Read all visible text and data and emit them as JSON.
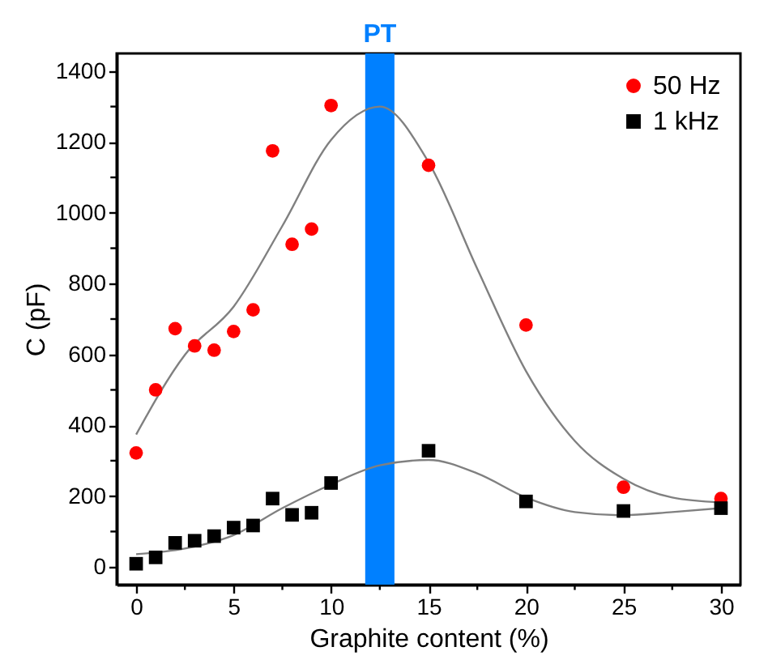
{
  "chart_data": {
    "type": "scatter",
    "xlabel": "Graphite content (%)",
    "ylabel": "C (pF)",
    "x": [
      0,
      1,
      2,
      3,
      4,
      5,
      6,
      7,
      8,
      9,
      10,
      15,
      20,
      25,
      30
    ],
    "series": [
      {
        "name": "50 Hz",
        "color": "#ff0000",
        "marker": "circle",
        "values": [
          322,
          500,
          673,
          624,
          612,
          665,
          726,
          1175,
          911,
          954,
          1303,
          1134,
          683,
          225,
          193
        ]
      },
      {
        "name": "1 kHz",
        "color": "#000000",
        "marker": "square",
        "values": [
          9,
          27,
          68,
          74,
          87,
          111,
          117,
          193,
          147,
          153,
          237,
          328,
          185,
          158,
          166
        ]
      },
      {
        "type": "line",
        "color": "#808080",
        "x": [
          0,
          2.5,
          5,
          7.5,
          10,
          12.5,
          15,
          17.5,
          20,
          22.5,
          25,
          27.5,
          30
        ],
        "values": [
          374,
          599,
          735,
          963,
          1206,
          1300,
          1143,
          842,
          553,
          356,
          249,
          196,
          182
        ]
      },
      {
        "type": "line",
        "color": "#808080",
        "x": [
          0,
          2.5,
          5,
          7.5,
          10,
          12.5,
          15,
          17.5,
          20,
          22.5,
          25,
          27.5,
          30
        ],
        "values": [
          36,
          52,
          90,
          166,
          233,
          287,
          302,
          264,
          196,
          155,
          146,
          155,
          166
        ]
      }
    ],
    "bands": [
      {
        "axis": "x",
        "from": 11.75,
        "to": 13.25,
        "label": "PT",
        "color": "#0080ff"
      }
    ],
    "xlim": [
      -1,
      31
    ],
    "xticks": [
      0,
      {
        "value": 2.5,
        "label": null
      },
      5,
      {
        "value": 7.5,
        "label": null
      },
      10,
      {
        "value": 12.5,
        "label": null
      },
      15,
      {
        "value": 17.5,
        "label": null
      },
      20,
      {
        "value": 22.5,
        "label": null
      },
      25,
      {
        "value": 27.5,
        "label": null
      },
      30
    ],
    "ylim": [
      -50,
      1450
    ],
    "yticks": [
      0,
      {
        "value": 100,
        "label": null
      },
      200,
      {
        "value": 300,
        "label": null
      },
      400,
      {
        "value": 500,
        "label": null
      },
      600,
      {
        "value": 700,
        "label": null
      },
      800,
      {
        "value": 900,
        "label": null
      },
      1000,
      {
        "value": 1100,
        "label": null
      },
      1200,
      {
        "value": 1300,
        "label": null
      },
      1400
    ],
    "grid": false,
    "legend": "top right"
  }
}
